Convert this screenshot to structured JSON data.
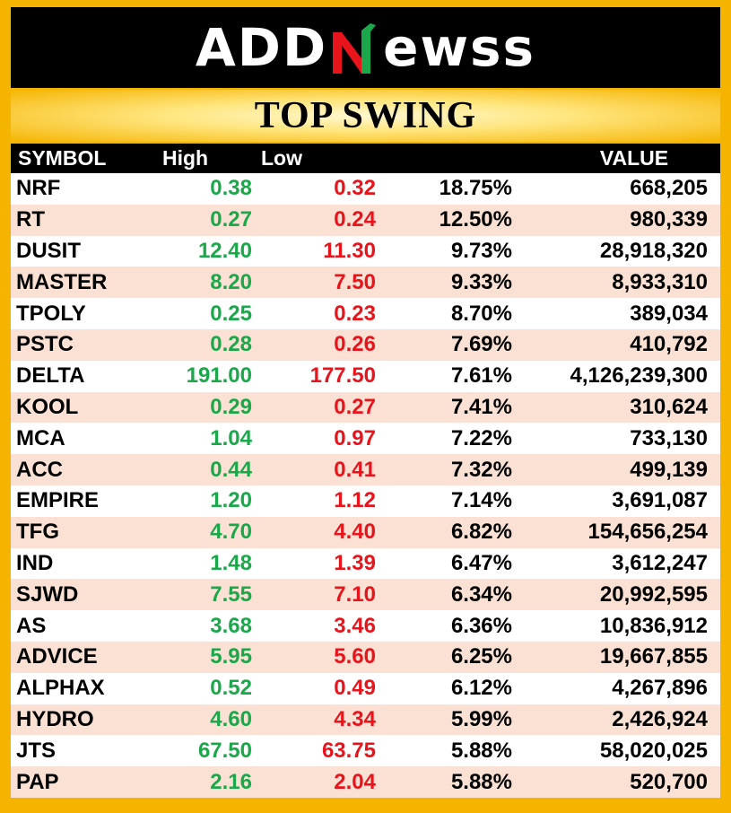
{
  "header": {
    "logo_text": "ADDNewss",
    "logo_left": "ADD",
    "logo_right": "ewss",
    "logo_mark_icon": "n-mark-icon",
    "colors": {
      "green": "#1aa84a",
      "red": "#e8141c",
      "gold": "#f5b400"
    }
  },
  "title": "TOP SWING",
  "table": {
    "headers": {
      "symbol": "SYMBOL",
      "high": "High",
      "low": "Low",
      "change": "",
      "value": "VALUE"
    },
    "rows": [
      {
        "symbol": "NRF",
        "high": "0.38",
        "low": "0.32",
        "change": "18.75%",
        "value": "668,205"
      },
      {
        "symbol": "RT",
        "high": "0.27",
        "low": "0.24",
        "change": "12.50%",
        "value": "980,339"
      },
      {
        "symbol": "DUSIT",
        "high": "12.40",
        "low": "11.30",
        "change": "9.73%",
        "value": "28,918,320"
      },
      {
        "symbol": "MASTER",
        "high": "8.20",
        "low": "7.50",
        "change": "9.33%",
        "value": "8,933,310"
      },
      {
        "symbol": "TPOLY",
        "high": "0.25",
        "low": "0.23",
        "change": "8.70%",
        "value": "389,034"
      },
      {
        "symbol": "PSTC",
        "high": "0.28",
        "low": "0.26",
        "change": "7.69%",
        "value": "410,792"
      },
      {
        "symbol": "DELTA",
        "high": "191.00",
        "low": "177.50",
        "change": "7.61%",
        "value": "4,126,239,300"
      },
      {
        "symbol": "KOOL",
        "high": "0.29",
        "low": "0.27",
        "change": "7.41%",
        "value": "310,624"
      },
      {
        "symbol": "MCA",
        "high": "1.04",
        "low": "0.97",
        "change": "7.22%",
        "value": "733,130"
      },
      {
        "symbol": "ACC",
        "high": "0.44",
        "low": "0.41",
        "change": "7.32%",
        "value": "499,139"
      },
      {
        "symbol": "EMPIRE",
        "high": "1.20",
        "low": "1.12",
        "change": "7.14%",
        "value": "3,691,087"
      },
      {
        "symbol": "TFG",
        "high": "4.70",
        "low": "4.40",
        "change": "6.82%",
        "value": "154,656,254"
      },
      {
        "symbol": "IND",
        "high": "1.48",
        "low": "1.39",
        "change": "6.47%",
        "value": "3,612,247"
      },
      {
        "symbol": "SJWD",
        "high": "7.55",
        "low": "7.10",
        "change": "6.34%",
        "value": "20,992,595"
      },
      {
        "symbol": "AS",
        "high": "3.68",
        "low": "3.46",
        "change": "6.36%",
        "value": "10,836,912"
      },
      {
        "symbol": "ADVICE",
        "high": "5.95",
        "low": "5.60",
        "change": "6.25%",
        "value": "19,667,855"
      },
      {
        "symbol": "ALPHAX",
        "high": "0.52",
        "low": "0.49",
        "change": "6.12%",
        "value": "4,267,896"
      },
      {
        "symbol": "HYDRO",
        "high": "4.60",
        "low": "4.34",
        "change": "5.99%",
        "value": "2,426,924"
      },
      {
        "symbol": "JTS",
        "high": "67.50",
        "low": "63.75",
        "change": "5.88%",
        "value": "58,020,025"
      },
      {
        "symbol": "PAP",
        "high": "2.16",
        "low": "2.04",
        "change": "5.88%",
        "value": "520,700"
      }
    ]
  }
}
